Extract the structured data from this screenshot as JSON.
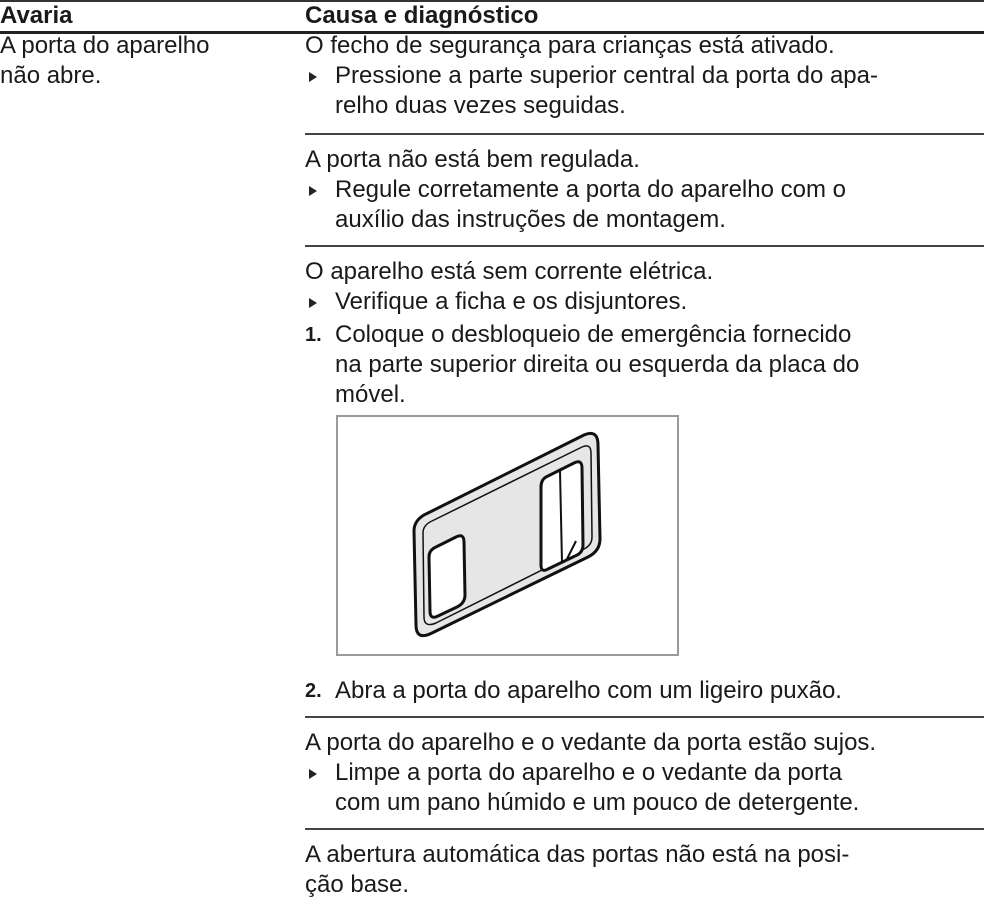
{
  "table": {
    "header": [
      "Avaria",
      "Causa e diagnóstico"
    ],
    "rows": [
      {
        "fault": "A porta do aparelho\nnão abre.",
        "causes": [
          {
            "cause": "O fecho de segurança para crianças está ativado.",
            "actions": [
              "Pressione a parte superior central da porta do apa-\nrelho duas vezes seguidas."
            ]
          },
          {
            "cause": "A porta não está bem regulada.",
            "actions": [
              "Regule corretamente a porta do aparelho com o\nauxílio das instruções de montagem."
            ]
          },
          {
            "cause": "O aparelho está sem corrente elétrica.",
            "actions": [
              "Verifique a ficha e os disjuntores."
            ],
            "steps": [
              {
                "number": "1.",
                "text": "Coloque o desbloqueio de emergência fornecido\nna parte superior direita ou esquerda da placa do\nmóvel."
              },
              {
                "number": "2.",
                "text": "Abra a porta do aparelho com um ligeiro puxão."
              }
            ]
          },
          {
            "cause": "A porta do aparelho e o vedante da porta estão sujos.",
            "actions": [
              "Limpe a porta do aparelho e o vedante da porta\ncom um pano húmido e um pouco de detergente."
            ]
          },
          {
            "cause": "A abertura automática das portas não está na posi-\nção base."
          }
        ]
      }
    ]
  }
}
